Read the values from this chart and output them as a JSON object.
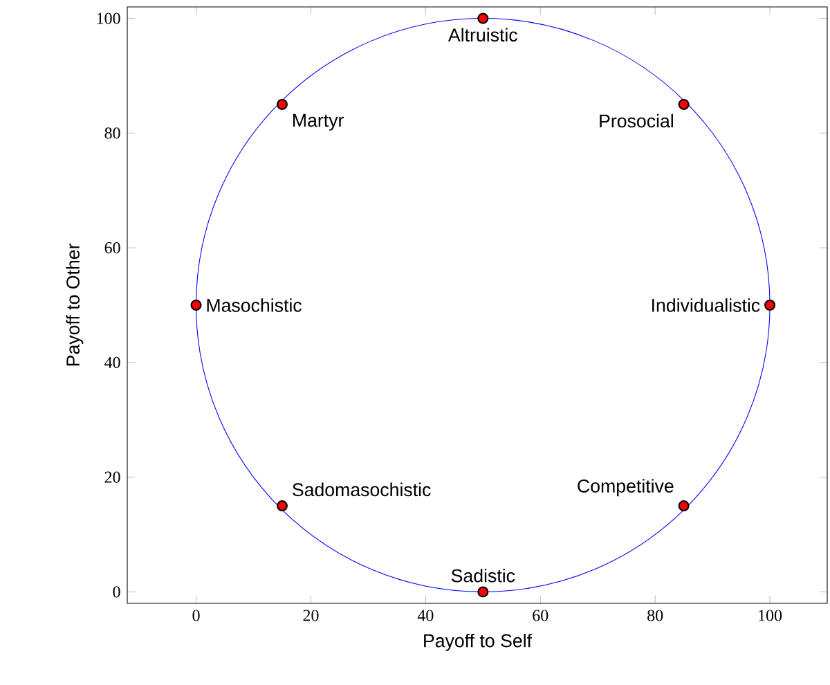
{
  "chart_data": {
    "type": "scatter",
    "xlabel": "Payoff to Self",
    "ylabel": "Payoff to Other",
    "xlim": [
      -12,
      110
    ],
    "ylim": [
      -2,
      102
    ],
    "xticks": [
      0,
      20,
      40,
      60,
      80,
      100
    ],
    "yticks": [
      0,
      20,
      40,
      60,
      80,
      100
    ],
    "color": "#ff0000",
    "marker": "circle",
    "x": [
      50,
      85,
      100,
      85,
      50,
      15,
      0,
      15
    ],
    "values": [
      100,
      85,
      50,
      15,
      0,
      15,
      50,
      85
    ],
    "annotations": [
      {
        "text": "Altruistic",
        "x": 50,
        "y": 100
      },
      {
        "text": "Prosocial",
        "x": 85,
        "y": 85
      },
      {
        "text": "Individualistic",
        "x": 100,
        "y": 50
      },
      {
        "text": "Competitive",
        "x": 85,
        "y": 15
      },
      {
        "text": "Sadistic",
        "x": 50,
        "y": 0
      },
      {
        "text": "Sadomasochistic",
        "x": 15,
        "y": 15
      },
      {
        "text": "Masochistic",
        "x": 0,
        "y": 50
      },
      {
        "text": "Martyr",
        "x": 15,
        "y": 85
      }
    ]
  }
}
